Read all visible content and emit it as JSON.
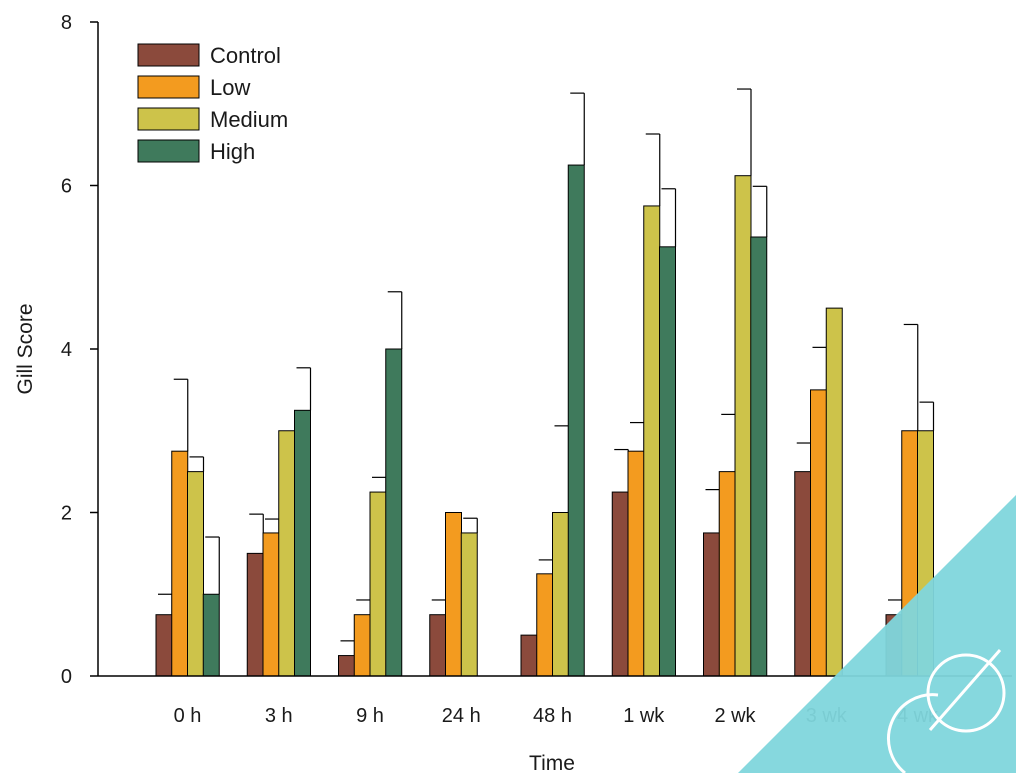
{
  "chart_data": {
    "type": "bar",
    "xlabel": "Time",
    "ylabel": "Gill Score",
    "ylim": [
      0,
      8
    ],
    "yticks": [
      "0",
      "2",
      "4",
      "6",
      "8"
    ],
    "categories": [
      "0 h",
      "3 h",
      "9 h",
      "24 h",
      "48 h",
      "1 wk",
      "2 wk",
      "3 wk",
      "4 wk"
    ],
    "legend_position": "top-left",
    "grid": false,
    "series": [
      {
        "name": "Control",
        "color": "#8b4a3c",
        "values": [
          0.75,
          1.5,
          0.25,
          0.75,
          0.5,
          2.25,
          1.75,
          2.5,
          0.75
        ],
        "errors": [
          0.25,
          0.48,
          0.18,
          0.18,
          null,
          0.52,
          0.53,
          0.35,
          0.18
        ]
      },
      {
        "name": "Low",
        "color": "#f39b1f",
        "values": [
          2.75,
          1.75,
          0.75,
          2.0,
          1.25,
          2.75,
          2.5,
          3.5,
          3.0
        ],
        "errors": [
          0.88,
          0.17,
          0.18,
          null,
          0.17,
          0.35,
          0.7,
          0.52,
          1.3
        ]
      },
      {
        "name": "Medium",
        "color": "#cdc34a",
        "values": [
          2.5,
          3.0,
          2.25,
          1.75,
          2.0,
          5.75,
          6.12,
          4.5,
          3.0
        ],
        "errors": [
          0.18,
          null,
          0.18,
          0.18,
          1.06,
          0.88,
          1.06,
          null,
          0.35
        ]
      },
      {
        "name": "High",
        "color": "#3f7a5c",
        "values": [
          1.0,
          3.25,
          4.0,
          null,
          6.25,
          5.25,
          5.37,
          null,
          null
        ],
        "errors": [
          0.7,
          0.52,
          0.7,
          null,
          0.88,
          0.71,
          0.62,
          null,
          null
        ]
      }
    ]
  },
  "watermark": {
    "color": "#7fd6dc"
  }
}
